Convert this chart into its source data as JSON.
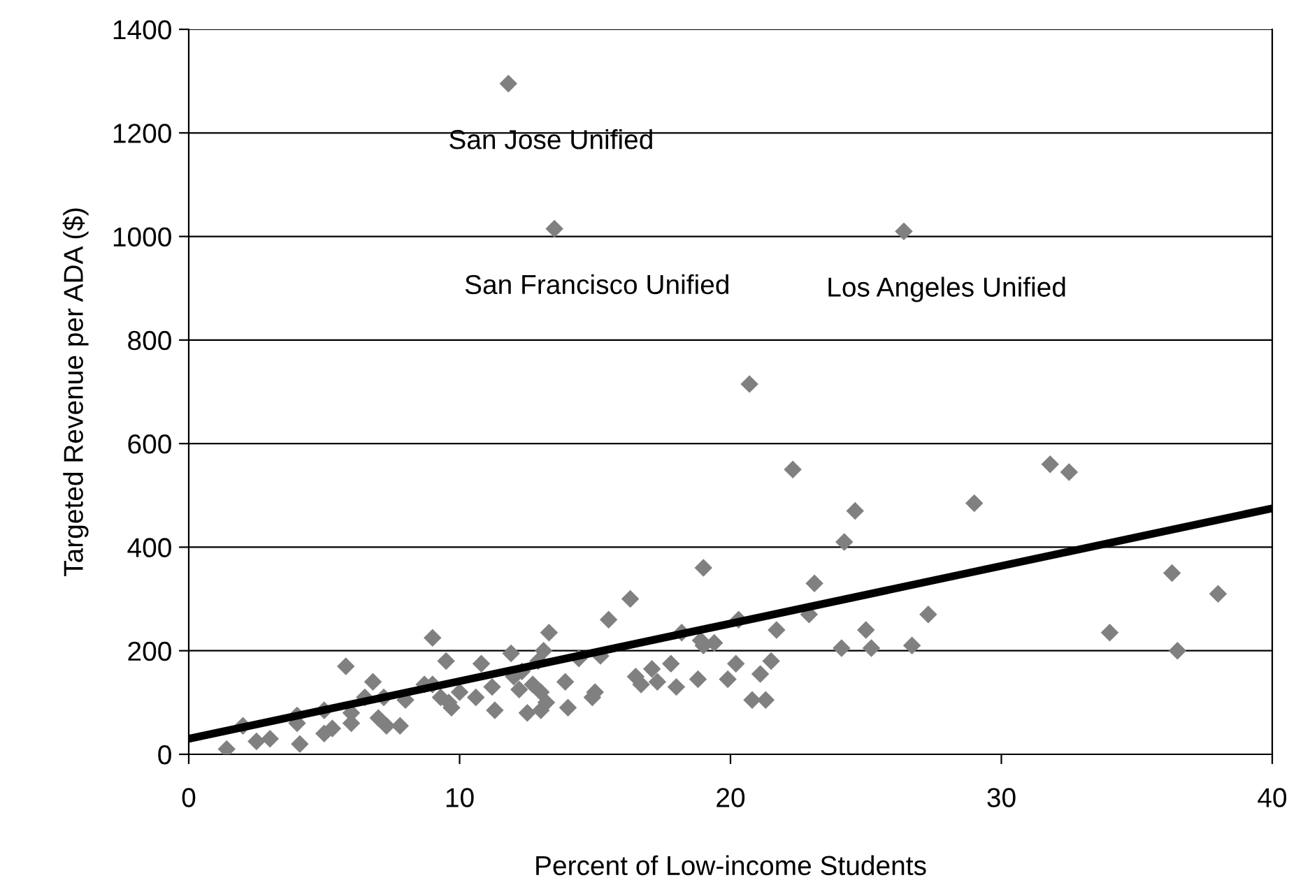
{
  "chart_data": {
    "type": "scatter",
    "xlabel": "Percent of Low-income Students",
    "ylabel": "Targeted Revenue per ADA ($)",
    "xlim": [
      0,
      40
    ],
    "xticks": [
      0,
      10,
      20,
      30,
      40
    ],
    "ylim": [
      0,
      1400
    ],
    "yticks": [
      0,
      200,
      400,
      600,
      800,
      1000,
      1200,
      1400
    ],
    "grid": "y",
    "series": [
      {
        "color": "#808080",
        "marker": "diamond",
        "x": [
          1.4,
          2,
          2.5,
          3,
          4,
          4,
          4.1,
          5,
          5,
          5.3,
          5.8,
          6,
          6,
          6.5,
          6.8,
          7,
          7.2,
          7.3,
          7.8,
          8,
          8.7,
          9,
          9,
          9.3,
          9.5,
          9.6,
          9.7,
          10,
          10.6,
          10.8,
          11.3,
          11.2,
          11.9,
          12,
          12.2,
          12.5,
          12.3,
          12.7,
          12.9,
          13,
          13,
          13.1,
          13.2,
          13.3,
          13.9,
          14,
          14.4,
          14.9,
          15,
          15.2,
          15.5,
          16.3,
          16.5,
          16.7,
          17.1,
          17.3,
          17.8,
          18,
          18.2,
          18.8,
          18.9,
          19,
          19,
          19.4,
          19.9,
          20.2,
          20.3,
          20.8,
          21.1,
          21.3,
          21.5,
          21.7,
          22.3,
          22.9,
          23.1,
          24.1,
          24.2,
          24.6,
          25,
          25.2,
          26.7,
          27.3,
          29,
          31.8,
          32.5,
          34,
          36.3,
          36.5,
          38,
          11.8,
          13.5,
          26.4,
          20.7
        ],
        "values": [
          10,
          55,
          25,
          30,
          75,
          60,
          20,
          85,
          40,
          50,
          170,
          80,
          60,
          110,
          140,
          70,
          110,
          55,
          55,
          105,
          135,
          135,
          225,
          110,
          180,
          100,
          90,
          120,
          110,
          175,
          85,
          130,
          195,
          150,
          125,
          80,
          160,
          135,
          180,
          85,
          120,
          200,
          100,
          235,
          140,
          90,
          185,
          110,
          120,
          190,
          260,
          300,
          150,
          135,
          165,
          140,
          175,
          130,
          235,
          145,
          220,
          360,
          210,
          215,
          145,
          175,
          260,
          105,
          155,
          105,
          180,
          240,
          550,
          270,
          330,
          205,
          410,
          470,
          240,
          205,
          210,
          270,
          485,
          560,
          545,
          235,
          350,
          200,
          310,
          1295,
          1015,
          1010,
          715
        ]
      },
      {
        "type": "line",
        "color": "#000000",
        "line_style": "solid",
        "x": [
          0,
          40
        ],
        "values": [
          30,
          475
        ]
      }
    ],
    "annotations": [
      {
        "text": "San Jose Unified",
        "x": 11.8,
        "y": 1295
      },
      {
        "text": "San Francisco Unified",
        "x": 13.5,
        "y": 1015
      },
      {
        "text": "Los Angeles Unified",
        "x": 26.4,
        "y": 1010
      }
    ]
  }
}
